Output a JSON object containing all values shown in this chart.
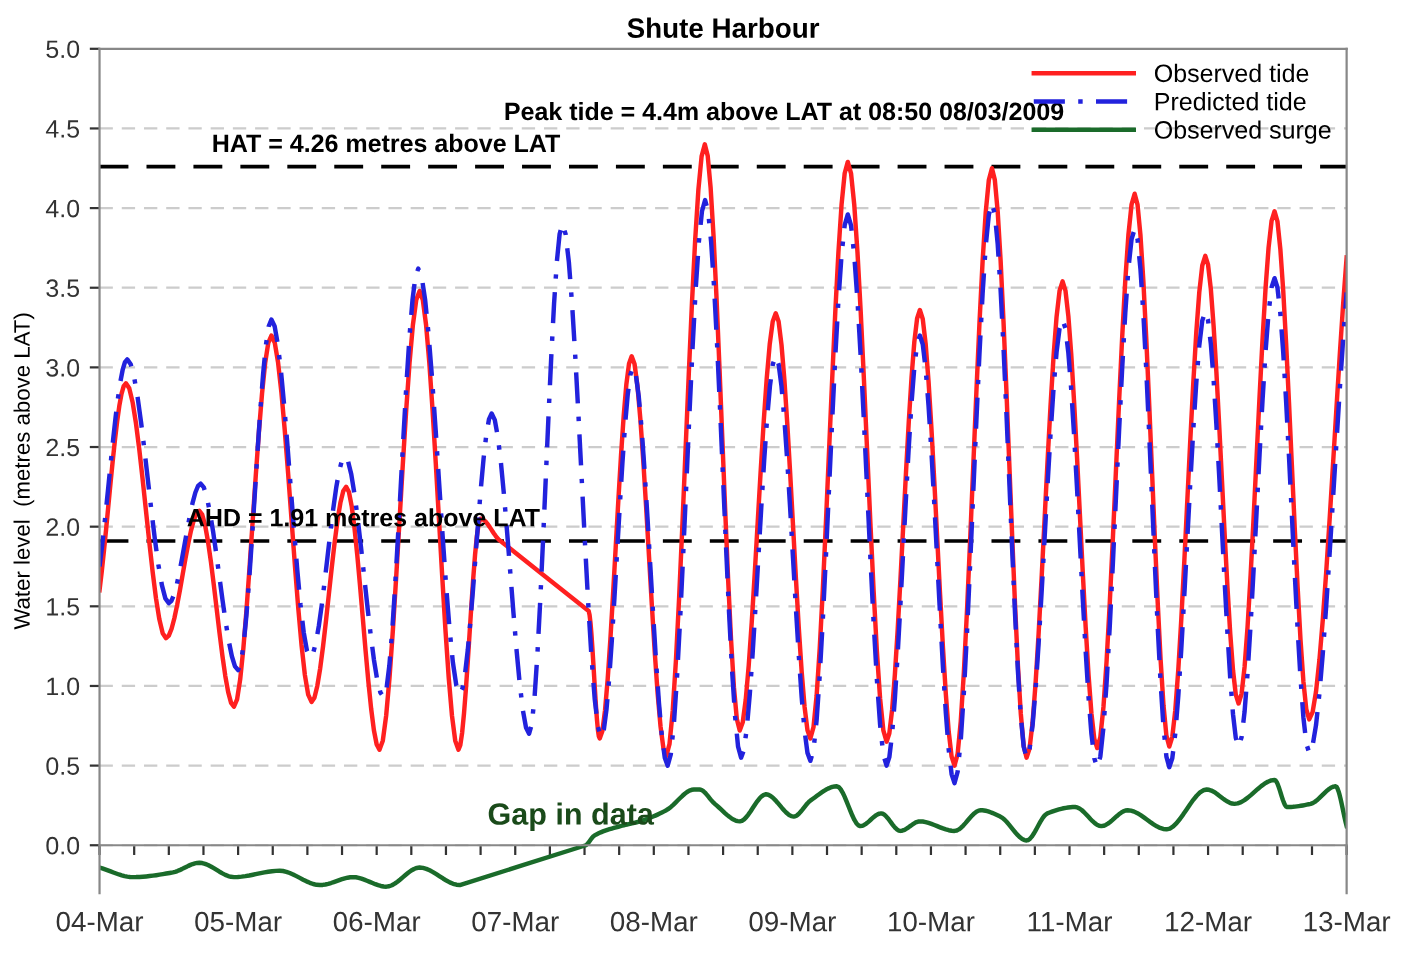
{
  "chart_data": {
    "type": "line",
    "title": "Shute Harbour",
    "ylabel": "Water level  (metres above LAT)",
    "xlim": [
      "2009-03-04",
      "2009-03-13"
    ],
    "ylim": [
      -0.3,
      5.0
    ],
    "xticks": [
      {
        "value": "2009-03-04",
        "label": "04-Mar"
      },
      {
        "value": "2009-03-04T06:00",
        "label": null
      },
      {
        "value": "2009-03-04T12:00",
        "label": null
      },
      {
        "value": "2009-03-04T18:00",
        "label": null
      },
      {
        "value": "2009-03-05",
        "label": "05-Mar"
      },
      {
        "value": "2009-03-05T06:00",
        "label": null
      },
      {
        "value": "2009-03-05T12:00",
        "label": null
      },
      {
        "value": "2009-03-05T18:00",
        "label": null
      },
      {
        "value": "2009-03-06",
        "label": "06-Mar"
      },
      {
        "value": "2009-03-06T06:00",
        "label": null
      },
      {
        "value": "2009-03-06T12:00",
        "label": null
      },
      {
        "value": "2009-03-06T18:00",
        "label": null
      },
      {
        "value": "2009-03-07",
        "label": "07-Mar"
      },
      {
        "value": "2009-03-07T06:00",
        "label": null
      },
      {
        "value": "2009-03-07T12:00",
        "label": null
      },
      {
        "value": "2009-03-07T18:00",
        "label": null
      },
      {
        "value": "2009-03-08",
        "label": "08-Mar"
      },
      {
        "value": "2009-03-08T06:00",
        "label": null
      },
      {
        "value": "2009-03-08T12:00",
        "label": null
      },
      {
        "value": "2009-03-08T18:00",
        "label": null
      },
      {
        "value": "2009-03-09",
        "label": "09-Mar"
      },
      {
        "value": "2009-03-09T06:00",
        "label": null
      },
      {
        "value": "2009-03-09T12:00",
        "label": null
      },
      {
        "value": "2009-03-09T18:00",
        "label": null
      },
      {
        "value": "2009-03-10",
        "label": "10-Mar"
      },
      {
        "value": "2009-03-10T06:00",
        "label": null
      },
      {
        "value": "2009-03-10T12:00",
        "label": null
      },
      {
        "value": "2009-03-10T18:00",
        "label": null
      },
      {
        "value": "2009-03-11",
        "label": "11-Mar"
      },
      {
        "value": "2009-03-11T06:00",
        "label": null
      },
      {
        "value": "2009-03-11T12:00",
        "label": null
      },
      {
        "value": "2009-03-11T18:00",
        "label": null
      },
      {
        "value": "2009-03-12",
        "label": "12-Mar"
      },
      {
        "value": "2009-03-12T06:00",
        "label": null
      },
      {
        "value": "2009-03-12T12:00",
        "label": null
      },
      {
        "value": "2009-03-12T18:00",
        "label": null
      },
      {
        "value": "2009-03-13",
        "label": "13-Mar"
      }
    ],
    "yticks": [
      {
        "value": 0,
        "label": "0.0"
      },
      0.5,
      {
        "value": 1,
        "label": "1.0"
      },
      1.5,
      {
        "value": 2,
        "label": "2.0"
      },
      2.5,
      {
        "value": 3,
        "label": "3.0"
      },
      3.5,
      {
        "value": 4,
        "label": "4.0"
      },
      4.5,
      {
        "value": 5,
        "label": "5.0"
      }
    ],
    "grid": "y",
    "legend": "top right",
    "series": [
      {
        "name": "Observed tide",
        "color": "#ff2020",
        "line_style": "solid",
        "x": [
          "2009-03-04T00:00",
          "2009-03-04T04:34",
          "2009-03-04T11:31",
          "2009-03-04T17:17",
          "2009-03-04T23:17",
          "2009-03-05T05:46",
          "2009-03-05T12:43",
          "2009-03-05T18:43",
          "2009-03-06T00:29",
          "2009-03-06T07:26",
          "2009-03-06T14:10",
          "2009-03-06T18:00",
          "2009-03-06T21:07",
          "2009-03-07T12:43",
          "2009-03-07T14:38",
          "2009-03-07T20:10",
          "2009-03-08T02:10",
          "2009-03-08T08:50",
          "2009-03-08T14:53",
          "2009-03-08T21:07",
          "2009-03-09T03:07",
          "2009-03-09T09:36",
          "2009-03-09T16:19",
          "2009-03-09T22:05",
          "2009-03-10T04:05",
          "2009-03-10T10:34",
          "2009-03-10T16:34",
          "2009-03-10T22:48",
          "2009-03-11T04:48",
          "2009-03-11T11:17",
          "2009-03-11T17:17",
          "2009-03-11T23:31",
          "2009-03-12T05:17",
          "2009-03-12T11:31",
          "2009-03-12T17:31",
          "2009-03-13T00:00"
        ],
        "values": [
          1.6,
          2.9,
          1.3,
          2.1,
          0.87,
          3.2,
          0.9,
          2.25,
          0.6,
          3.48,
          0.6,
          2.05,
          1.92,
          1.47,
          0.67,
          3.07,
          0.56,
          4.4,
          0.72,
          3.34,
          0.67,
          4.29,
          0.65,
          3.36,
          0.5,
          4.25,
          0.55,
          3.54,
          0.61,
          4.09,
          0.62,
          3.7,
          0.89,
          3.98,
          0.79,
          3.69
        ]
      },
      {
        "name": "Predicted tide",
        "color": "#2222dd",
        "line_style": "dashdot",
        "x": [
          "2009-03-04T00:00",
          "2009-03-04T04:48",
          "2009-03-04T12:00",
          "2009-03-04T17:31",
          "2009-03-05T00:00",
          "2009-03-05T05:46",
          "2009-03-05T12:29",
          "2009-03-05T18:29",
          "2009-03-06T01:12",
          "2009-03-06T07:12",
          "2009-03-06T14:24",
          "2009-03-06T19:55",
          "2009-03-07T02:24",
          "2009-03-07T08:10",
          "2009-03-07T14:53",
          "2009-03-07T20:24",
          "2009-03-08T02:24",
          "2009-03-08T08:53",
          "2009-03-08T15:07",
          "2009-03-08T21:07",
          "2009-03-09T03:07",
          "2009-03-09T09:36",
          "2009-03-09T16:19",
          "2009-03-09T22:05",
          "2009-03-10T04:05",
          "2009-03-10T10:34",
          "2009-03-10T16:34",
          "2009-03-10T22:48",
          "2009-03-11T04:48",
          "2009-03-11T11:17",
          "2009-03-11T17:17",
          "2009-03-11T23:31",
          "2009-03-12T05:17",
          "2009-03-12T11:31",
          "2009-03-12T17:31",
          "2009-03-13T00:00"
        ],
        "values": [
          1.75,
          3.05,
          1.52,
          2.27,
          1.1,
          3.3,
          1.18,
          2.44,
          0.93,
          3.62,
          0.95,
          2.71,
          0.7,
          3.9,
          0.68,
          3.0,
          0.5,
          4.05,
          0.55,
          3.07,
          0.53,
          3.96,
          0.5,
          3.2,
          0.39,
          4.03,
          0.55,
          3.3,
          0.49,
          3.87,
          0.49,
          3.35,
          0.62,
          3.56,
          0.58,
          3.47
        ]
      },
      {
        "name": "Observed surge",
        "color": "#1a6b2a",
        "line_style": "solid",
        "x": [
          "2009-03-04T00:00",
          "2009-03-04T05:46",
          "2009-03-04T12:43",
          "2009-03-04T17:17",
          "2009-03-04T23:17",
          "2009-03-05T07:12",
          "2009-03-05T14:10",
          "2009-03-05T19:55",
          "2009-03-06T01:41",
          "2009-03-06T07:26",
          "2009-03-06T14:24",
          "2009-03-07T12:14",
          "2009-03-07T13:41",
          "2009-03-07T18:14",
          "2009-03-07T21:36",
          "2009-03-08T02:10",
          "2009-03-08T06:58",
          "2009-03-08T07:55",
          "2009-03-08T10:34",
          "2009-03-08T14:53",
          "2009-03-08T19:26",
          "2009-03-09T00:14",
          "2009-03-09T03:07",
          "2009-03-09T07:41",
          "2009-03-09T11:46",
          "2009-03-09T15:22",
          "2009-03-09T18:43",
          "2009-03-09T22:05",
          "2009-03-10T04:05",
          "2009-03-10T08:38",
          "2009-03-10T12:00",
          "2009-03-10T16:34",
          "2009-03-10T20:10",
          "2009-03-11T00:58",
          "2009-03-11T05:31",
          "2009-03-11T10:05",
          "2009-03-11T16:48",
          "2009-03-11T23:46",
          "2009-03-12T04:34",
          "2009-03-12T11:31",
          "2009-03-12T13:41",
          "2009-03-12T17:46",
          "2009-03-12T22:05",
          "2009-03-13T00:00"
        ],
        "values": [
          -0.14,
          -0.2,
          -0.17,
          -0.11,
          -0.2,
          -0.16,
          -0.25,
          -0.2,
          -0.26,
          -0.14,
          -0.25,
          0.0,
          0.06,
          0.12,
          0.15,
          0.22,
          0.35,
          0.35,
          0.26,
          0.15,
          0.32,
          0.18,
          0.28,
          0.37,
          0.12,
          0.2,
          0.09,
          0.15,
          0.09,
          0.22,
          0.18,
          0.03,
          0.2,
          0.24,
          0.12,
          0.22,
          0.1,
          0.35,
          0.26,
          0.41,
          0.24,
          0.26,
          0.37,
          0.12
        ]
      }
    ],
    "ref_lines": [
      {
        "axis": "y",
        "value": 4.26,
        "label": "HAT = 4.26 metres above LAT",
        "color": "#000000",
        "line_style": "dashed"
      },
      {
        "axis": "y",
        "value": 1.91,
        "label": "AHD = 1.91 metres above LAT",
        "color": "#000000",
        "line_style": "dashed"
      }
    ],
    "annotations": [
      {
        "text": "Peak tide = 4.4m above LAT at 08:50 08/03/2009",
        "x": "2009-03-08T08:50",
        "y": 4.4
      },
      "Gap in data"
    ]
  }
}
